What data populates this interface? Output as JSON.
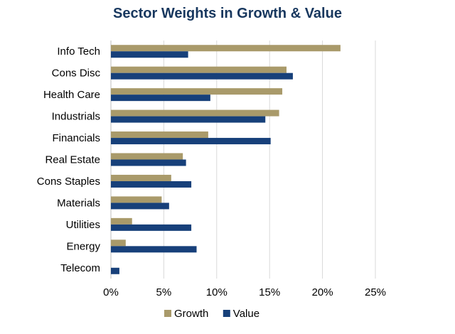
{
  "chart_data": {
    "type": "bar",
    "orientation": "horizontal",
    "title": "Sector Weights in Growth & Value",
    "xlabel": "",
    "ylabel": "",
    "categories": [
      "Info Tech",
      "Cons Disc",
      "Health Care",
      "Industrials",
      "Financials",
      "Real Estate",
      "Cons Staples",
      "Materials",
      "Utilities",
      "Energy",
      "Telecom"
    ],
    "series": [
      {
        "name": "Growth",
        "color": "#a99a6a",
        "values": [
          21.7,
          16.6,
          16.2,
          15.9,
          9.2,
          6.8,
          5.7,
          4.8,
          2.0,
          1.4,
          0
        ]
      },
      {
        "name": "Value",
        "color": "#17407a",
        "values": [
          7.3,
          17.2,
          9.4,
          14.6,
          15.1,
          7.1,
          7.6,
          5.5,
          7.6,
          8.1,
          0.8
        ]
      }
    ],
    "xlim": [
      0,
      25
    ],
    "xticks": [
      0,
      5,
      10,
      15,
      20,
      25
    ],
    "xtick_labels": [
      "0%",
      "5%",
      "10%",
      "15%",
      "20%",
      "25%"
    ],
    "grid": "vertical",
    "legend_position": "bottom"
  }
}
